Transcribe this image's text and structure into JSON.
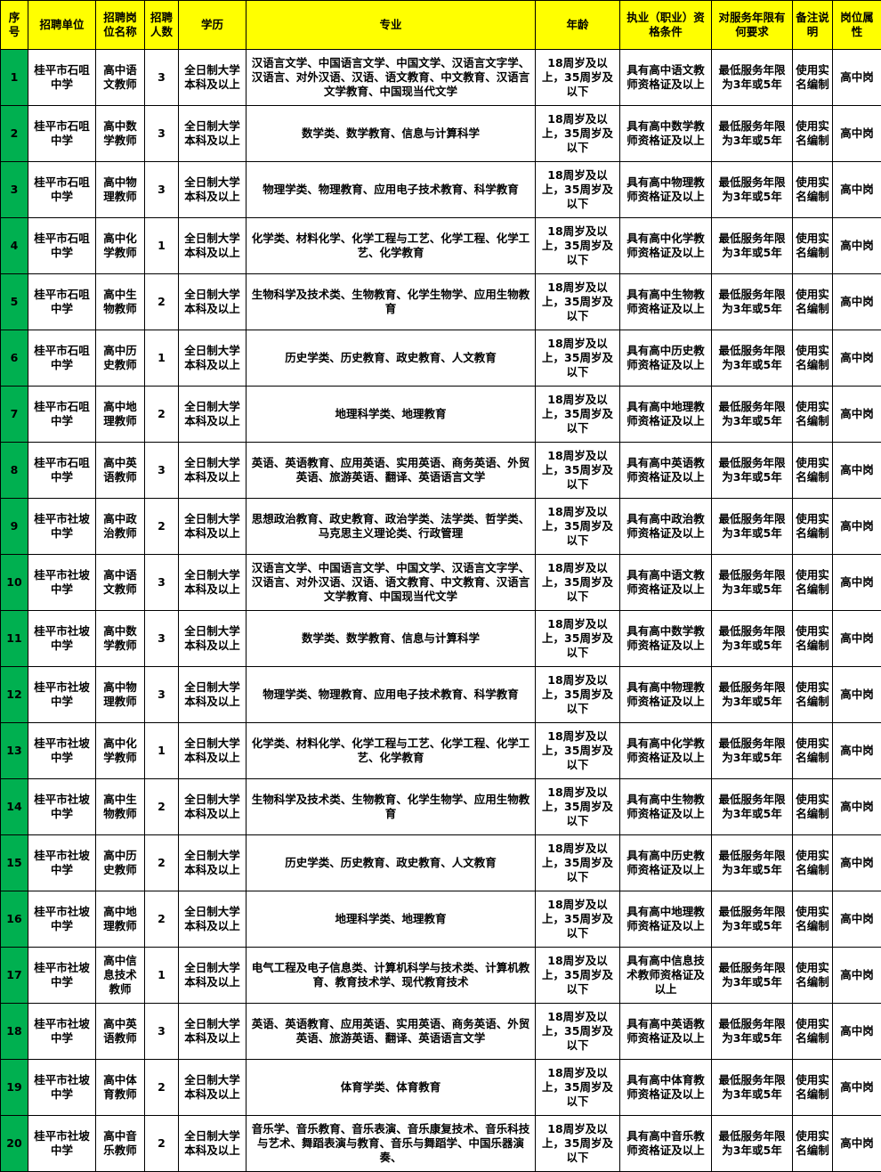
{
  "table": {
    "header": [
      "序号",
      "招聘单位",
      "招聘岗位名称",
      "招聘人数",
      "学历",
      "专业",
      "年龄",
      "执业（职业）资格条件",
      "对服务年限有何要求",
      "备注说明",
      "岗位属性"
    ],
    "rows": [
      [
        1,
        "桂平市石咀中学",
        "高中语文教师",
        3,
        "全日制大学本科及以上",
        "汉语言文学、中国语言文学、中国文学、汉语言文字学、汉语言、对外汉语、汉语、语文教育、中文教育、汉语言文学教育、中国现当代文学",
        "18周岁及以上，35周岁及以下",
        "具有高中语文教师资格证及以上",
        "最低服务年限为3年或5年",
        "使用实名编制",
        "高中岗"
      ],
      [
        2,
        "桂平市石咀中学",
        "高中数学教师",
        3,
        "全日制大学本科及以上",
        "数学类、数学教育、信息与计算科学",
        "18周岁及以上，35周岁及以下",
        "具有高中数学教师资格证及以上",
        "最低服务年限为3年或5年",
        "使用实名编制",
        "高中岗"
      ],
      [
        3,
        "桂平市石咀中学",
        "高中物理教师",
        3,
        "全日制大学本科及以上",
        "物理学类、物理教育、应用电子技术教育、科学教育",
        "18周岁及以上，35周岁及以下",
        "具有高中物理教师资格证及以上",
        "最低服务年限为3年或5年",
        "使用实名编制",
        "高中岗"
      ],
      [
        4,
        "桂平市石咀中学",
        "高中化学教师",
        1,
        "全日制大学本科及以上",
        "化学类、材料化学、化学工程与工艺、化学工程、化学工艺、化学教育",
        "18周岁及以上，35周岁及以下",
        "具有高中化学教师资格证及以上",
        "最低服务年限为3年或5年",
        "使用实名编制",
        "高中岗"
      ],
      [
        5,
        "桂平市石咀中学",
        "高中生物教师",
        2,
        "全日制大学本科及以上",
        "生物科学及技术类、生物教育、化学生物学、应用生物教育",
        "18周岁及以上，35周岁及以下",
        "具有高中生物教师资格证及以上",
        "最低服务年限为3年或5年",
        "使用实名编制",
        "高中岗"
      ],
      [
        6,
        "桂平市石咀中学",
        "高中历史教师",
        1,
        "全日制大学本科及以上",
        "历史学类、历史教育、政史教育、人文教育",
        "18周岁及以上，35周岁及以下",
        "具有高中历史教师资格证及以上",
        "最低服务年限为3年或5年",
        "使用实名编制",
        "高中岗"
      ],
      [
        7,
        "桂平市石咀中学",
        "高中地理教师",
        2,
        "全日制大学本科及以上",
        "地理科学类、地理教育",
        "18周岁及以上，35周岁及以下",
        "具有高中地理教师资格证及以上",
        "最低服务年限为3年或5年",
        "使用实名编制",
        "高中岗"
      ],
      [
        8,
        "桂平市石咀中学",
        "高中英语教师",
        3,
        "全日制大学本科及以上",
        "英语、英语教育、应用英语、实用英语、商务英语、外贸英语、旅游英语、翻译、英语语言文学",
        "18周岁及以上，35周岁及以下",
        "具有高中英语教师资格证及以上",
        "最低服务年限为3年或5年",
        "使用实名编制",
        "高中岗"
      ],
      [
        9,
        "桂平市社坡中学",
        "高中政治教师",
        2,
        "全日制大学本科及以上",
        "思想政治教育、政史教育、政治学类、法学类、哲学类、马克思主义理论类、行政管理",
        "18周岁及以上，35周岁及以下",
        "具有高中政治教师资格证及以上",
        "最低服务年限为3年或5年",
        "使用实名编制",
        "高中岗"
      ],
      [
        10,
        "桂平市社坡中学",
        "高中语文教师",
        3,
        "全日制大学本科及以上",
        "汉语言文学、中国语言文学、中国文学、汉语言文字学、汉语言、对外汉语、汉语、语文教育、中文教育、汉语言文学教育、中国现当代文学",
        "18周岁及以上，35周岁及以下",
        "具有高中语文教师资格证及以上",
        "最低服务年限为3年或5年",
        "使用实名编制",
        "高中岗"
      ],
      [
        11,
        "桂平市社坡中学",
        "高中数学教师",
        3,
        "全日制大学本科及以上",
        "数学类、数学教育、信息与计算科学",
        "18周岁及以上，35周岁及以下",
        "具有高中数学教师资格证及以上",
        "最低服务年限为3年或5年",
        "使用实名编制",
        "高中岗"
      ],
      [
        12,
        "桂平市社坡中学",
        "高中物理教师",
        3,
        "全日制大学本科及以上",
        "物理学类、物理教育、应用电子技术教育、科学教育",
        "18周岁及以上，35周岁及以下",
        "具有高中物理教师资格证及以上",
        "最低服务年限为3年或5年",
        "使用实名编制",
        "高中岗"
      ],
      [
        13,
        "桂平市社坡中学",
        "高中化学教师",
        1,
        "全日制大学本科及以上",
        "化学类、材料化学、化学工程与工艺、化学工程、化学工艺、化学教育",
        "18周岁及以上，35周岁及以下",
        "具有高中化学教师资格证及以上",
        "最低服务年限为3年或5年",
        "使用实名编制",
        "高中岗"
      ],
      [
        14,
        "桂平市社坡中学",
        "高中生物教师",
        2,
        "全日制大学本科及以上",
        "生物科学及技术类、生物教育、化学生物学、应用生物教育",
        "18周岁及以上，35周岁及以下",
        "具有高中生物教师资格证及以上",
        "最低服务年限为3年或5年",
        "使用实名编制",
        "高中岗"
      ],
      [
        15,
        "桂平市社坡中学",
        "高中历史教师",
        2,
        "全日制大学本科及以上",
        "历史学类、历史教育、政史教育、人文教育",
        "18周岁及以上，35周岁及以下",
        "具有高中历史教师资格证及以上",
        "最低服务年限为3年或5年",
        "使用实名编制",
        "高中岗"
      ],
      [
        16,
        "桂平市社坡中学",
        "高中地理教师",
        2,
        "全日制大学本科及以上",
        "地理科学类、地理教育",
        "18周岁及以上，35周岁及以下",
        "具有高中地理教师资格证及以上",
        "最低服务年限为3年或5年",
        "使用实名编制",
        "高中岗"
      ],
      [
        17,
        "桂平市社坡中学",
        "高中信息技术教师",
        1,
        "全日制大学本科及以上",
        "电气工程及电子信息类、计算机科学与技术类、计算机教育、教育技术学、现代教育技术",
        "18周岁及以上，35周岁及以下",
        "具有高中信息技术教师资格证及以上",
        "最低服务年限为3年或5年",
        "使用实名编制",
        "高中岗"
      ],
      [
        18,
        "桂平市社坡中学",
        "高中英语教师",
        3,
        "全日制大学本科及以上",
        "英语、英语教育、应用英语、实用英语、商务英语、外贸英语、旅游英语、翻译、英语语言文学",
        "18周岁及以上，35周岁及以下",
        "具有高中英语教师资格证及以上",
        "最低服务年限为3年或5年",
        "使用实名编制",
        "高中岗"
      ],
      [
        19,
        "桂平市社坡中学",
        "高中体育教师",
        2,
        "全日制大学本科及以上",
        "体育学类、体育教育",
        "18周岁及以上，35周岁及以下",
        "具有高中体育教师资格证及以上",
        "最低服务年限为3年或5年",
        "使用实名编制",
        "高中岗"
      ],
      [
        20,
        "桂平市社坡中学",
        "高中音乐教师",
        2,
        "全日制大学本科及以上",
        "音乐学、音乐教育、音乐表演、音乐康复技术、音乐科技与艺术、舞蹈表演与教育、音乐与舞蹈学、中国乐器演奏、",
        "18周岁及以上，35周岁及以下",
        "具有高中音乐教师资格证及以上",
        "最低服务年限为3年或5年",
        "使用实名编制",
        "高中岗"
      ]
    ]
  }
}
